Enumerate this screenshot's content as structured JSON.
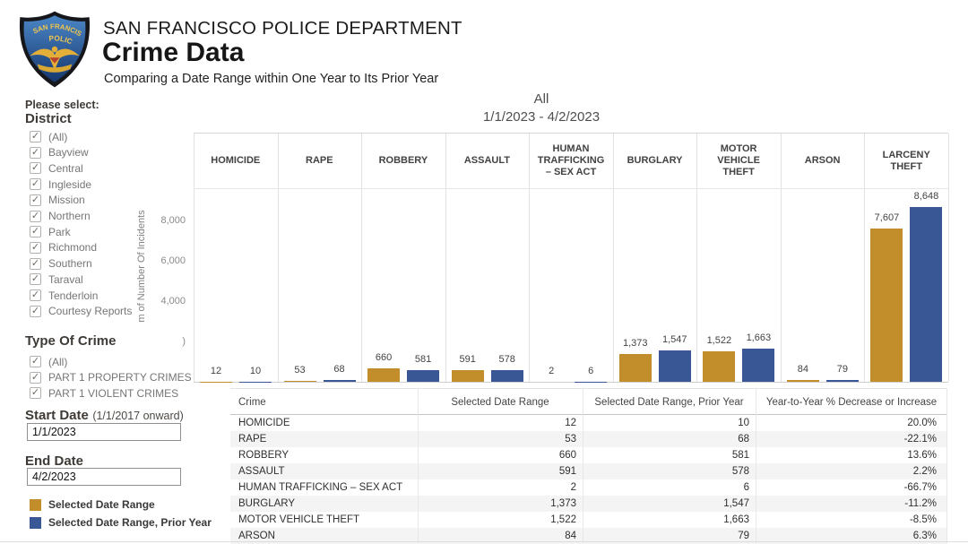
{
  "header": {
    "org": "SAN FRANCISCO POLICE DEPARTMENT",
    "title": "Crime Data",
    "subtitle": "Comparing a Date Range within One Year to Its Prior Year",
    "logo": {
      "name": "sfpd-badge",
      "arc_text": "SAN FRANCISCO",
      "mid_text": "POLICE"
    }
  },
  "sidebar": {
    "prompt": "Please select:",
    "district": {
      "title": "District",
      "items": [
        "(All)",
        "Bayview",
        "Central",
        "Ingleside",
        "Mission",
        "Northern",
        "Park",
        "Richmond",
        "Southern",
        "Taraval",
        "Tenderloin",
        "Courtesy Reports"
      ],
      "all_checked": true
    },
    "crime_type": {
      "title": "Type Of Crime",
      "items": [
        "(All)",
        "PART 1 PROPERTY CRIMES",
        "PART 1 VIOLENT CRIMES"
      ],
      "all_checked": true
    },
    "start_date": {
      "label": "Start Date",
      "hint": "(1/1/2017 onward)",
      "value": "1/1/2023"
    },
    "end_date": {
      "label": "End Date",
      "value": "4/2/2023"
    },
    "legend": [
      {
        "label": "Selected Date Range",
        "color": "#C28E2C"
      },
      {
        "label": "Selected Date Range, Prior Year",
        "color": "#3A5795"
      }
    ]
  },
  "chart_data": {
    "type": "bar",
    "title": "All",
    "subtitle": "1/1/2023 - 4/2/2023",
    "categories": [
      "HOMICIDE",
      "RAPE",
      "ROBBERY",
      "ASSAULT",
      "HUMAN TRAFFICKING – SEX ACT",
      "BURGLARY",
      "MOTOR VEHICLE THEFT",
      "ARSON",
      "LARCENY THEFT"
    ],
    "series": [
      {
        "name": "Selected Date Range",
        "color": "#C28E2C",
        "values": [
          12,
          53,
          660,
          591,
          2,
          1373,
          1522,
          84,
          7607
        ],
        "labels": [
          "12",
          "53",
          "660",
          "591",
          "2",
          "1,373",
          "1,522",
          "84",
          "7,607"
        ]
      },
      {
        "name": "Selected Date Range, Prior Year",
        "color": "#3A5795",
        "values": [
          10,
          68,
          581,
          578,
          6,
          1547,
          1663,
          79,
          8648
        ],
        "labels": [
          "10",
          "68",
          "581",
          "578",
          "6",
          "1,547",
          "1,663",
          "79",
          "8,648"
        ]
      }
    ],
    "ylabel_visible": "m of Number Of Incidents",
    "y_ticks": [
      {
        "label": "8,000",
        "value": 8000
      },
      {
        "label": "6,000",
        "value": 6000
      },
      {
        "label": "4,000",
        "value": 4000
      },
      {
        "label": ")",
        "value": 2000
      }
    ],
    "ylim": [
      0,
      12400
    ],
    "grid": "vertical-column-separators-only",
    "legend_position": "bottom-left-sidebar"
  },
  "table": {
    "headers": [
      "Crime",
      "Selected Date Range",
      "Selected Date Range, Prior Year",
      "Year-to-Year % Decrease or Increase"
    ],
    "rows": [
      [
        "HOMICIDE",
        "12",
        "10",
        "20.0%"
      ],
      [
        "RAPE",
        "53",
        "68",
        "-22.1%"
      ],
      [
        "ROBBERY",
        "660",
        "581",
        "13.6%"
      ],
      [
        "ASSAULT",
        "591",
        "578",
        "2.2%"
      ],
      [
        "HUMAN TRAFFICKING – SEX ACT",
        "2",
        "6",
        "-66.7%"
      ],
      [
        "BURGLARY",
        "1,373",
        "1,547",
        "-11.2%"
      ],
      [
        "MOTOR VEHICLE THEFT",
        "1,522",
        "1,663",
        "-8.5%"
      ],
      [
        "ARSON",
        "84",
        "79",
        "6.3%"
      ]
    ]
  }
}
